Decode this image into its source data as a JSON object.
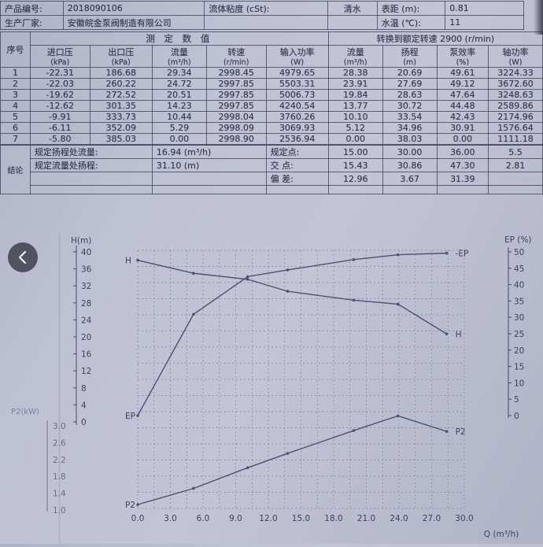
{
  "colors": {
    "paper": "#bfc1d4",
    "ink": "#34374f",
    "line": "#4d5074",
    "grid": "#8185a5",
    "button": "#484a58"
  },
  "nav": {
    "prev_icon": "chevron-left"
  },
  "info": {
    "rows": [
      {
        "label": "产品编号:",
        "value": "2018090106",
        "label2": "流体粘度 (cSt):",
        "value2": "清水",
        "label3": "表距 (m):",
        "value3": "0.81"
      },
      {
        "label": "生产厂家:",
        "value": "安徽皖金泵阀制造有限公司",
        "label2": "",
        "value2": "",
        "label3": "水温 (℃):",
        "value3": "11"
      }
    ]
  },
  "table": {
    "group": {
      "measured": "测 定 数 值",
      "converted": "转换到额定转速  2900 (r/min)"
    },
    "columns": [
      {
        "name": "序号",
        "unit": ""
      },
      {
        "name": "进口压",
        "unit": "(kPa)"
      },
      {
        "name": "出口压",
        "unit": "(kPa)"
      },
      {
        "name": "流量",
        "unit": "(m³/h)"
      },
      {
        "name": "转速",
        "unit": "(r/min)"
      },
      {
        "name": "输入功率",
        "unit": "(W)"
      },
      {
        "name": "流量",
        "unit": "(m³/h)"
      },
      {
        "name": "扬程",
        "unit": "(m)"
      },
      {
        "name": "泵效率",
        "unit": "(%)"
      },
      {
        "name": "轴功率",
        "unit": "(W)"
      }
    ],
    "rows": [
      [
        "1",
        "-22.31",
        "186.68",
        "29.34",
        "2998.45",
        "4979.65",
        "28.38",
        "20.69",
        "49.61",
        "3224.33"
      ],
      [
        "2",
        "-22.03",
        "260.22",
        "24.72",
        "2997.85",
        "5503.31",
        "23.91",
        "27.69",
        "49.12",
        "3672.60"
      ],
      [
        "3",
        "-19.62",
        "272.52",
        "20.51",
        "2997.85",
        "5006.73",
        "19.84",
        "28.63",
        "47.64",
        "3248.63"
      ],
      [
        "4",
        "-12.62",
        "301.35",
        "14.23",
        "2997.85",
        "4240.54",
        "13.77",
        "30.72",
        "44.48",
        "2589.86"
      ],
      [
        "5",
        "-9.91",
        "333.73",
        "10.44",
        "2998.04",
        "3760.26",
        "10.10",
        "33.54",
        "42.43",
        "2174.96"
      ],
      [
        "6",
        "-6.11",
        "352.09",
        "5.29",
        "2998.09",
        "3069.93",
        "5.12",
        "34.96",
        "30.91",
        "1576.64"
      ],
      [
        "7",
        "-5.80",
        "385.03",
        "0.00",
        "2998.90",
        "2536.94",
        "0.00",
        "38.03",
        "0.00",
        "1111.18"
      ]
    ]
  },
  "conclusion": {
    "label": "结论",
    "rows": [
      {
        "item": "规定扬程处流量:",
        "value": "16.94 (m³/h)",
        "point": "规定点:",
        "c1": "15.00",
        "c2": "30.00",
        "c3": "36.00",
        "c4": "5.5"
      },
      {
        "item": "规定流量处扬程:",
        "value": "31.10 (m)",
        "point": "交 点:",
        "c1": "15.43",
        "c2": "30.86",
        "c3": "47.30",
        "c4": "2.81"
      },
      {
        "item": "",
        "value": "",
        "point": "偏 差:",
        "c1": "12.96",
        "c2": "3.67",
        "c3": "31.39",
        "c4": ""
      }
    ]
  },
  "chart_data": {
    "type": "line",
    "x_label": "Q (m³/h)",
    "x_ticks": [
      "0.0",
      "3.0",
      "6.0",
      "9.0",
      "12.0",
      "15.0",
      "18.0",
      "21.0",
      "24.0",
      "27.0",
      "30.0"
    ],
    "x_range": [
      0,
      30
    ],
    "grid": true,
    "left_axis": {
      "label": "H(m)",
      "ticks": [
        40,
        36,
        32,
        28,
        24,
        20,
        16,
        12,
        8,
        4,
        0
      ],
      "range": [
        0,
        40
      ]
    },
    "right_axis": {
      "label": "EP (%)",
      "ticks": [
        50,
        45,
        40,
        35,
        30,
        25,
        20,
        15,
        10,
        5,
        0
      ],
      "range": [
        0,
        50
      ]
    },
    "power_axis": {
      "label": "P2(kW)",
      "ticks": [
        "3.0",
        "2.6",
        "2.2",
        "1.8",
        "1.4",
        "1.0"
      ]
    },
    "series": [
      {
        "name": "H",
        "axis": "H",
        "label_start": "H",
        "label_end": "H",
        "x": [
          0,
          5.12,
          10.1,
          13.77,
          19.84,
          23.91,
          28.38
        ],
        "y": [
          38.03,
          34.96,
          33.54,
          30.72,
          28.63,
          27.69,
          20.69
        ]
      },
      {
        "name": "EP",
        "axis": "EP",
        "label_start": "EP",
        "label_end": "-EP",
        "x": [
          0,
          5.12,
          10.1,
          13.77,
          19.84,
          23.91,
          28.38
        ],
        "y": [
          0,
          30.91,
          42.43,
          44.48,
          47.64,
          49.12,
          49.61
        ]
      },
      {
        "name": "P2",
        "axis": "P2",
        "label_start": "P2",
        "label_end": "P2",
        "x": [
          0,
          5.12,
          10.1,
          13.77,
          19.84,
          23.91,
          28.38
        ],
        "y": [
          1.111,
          1.577,
          2.175,
          2.59,
          3.249,
          3.673,
          3.224
        ]
      }
    ]
  }
}
